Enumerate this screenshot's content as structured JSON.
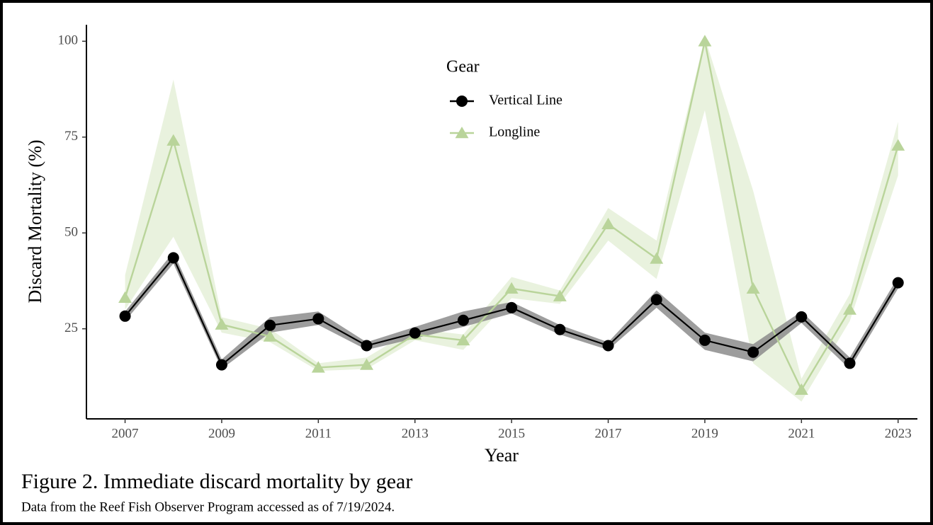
{
  "chart_data": {
    "type": "line",
    "x_label": "Year",
    "y_label": "Discard Mortality (%)",
    "caption": "Figure 2.  Immediate discard mortality by gear",
    "note": "Data from the Reef Fish Observer Program accessed as of 7/19/2024.",
    "legend_title": "Gear",
    "x": [
      2007,
      2008,
      2009,
      2010,
      2011,
      2012,
      2013,
      2014,
      2015,
      2016,
      2017,
      2018,
      2019,
      2020,
      2021,
      2022,
      2023
    ],
    "series": [
      {
        "name": "Vertical Line",
        "color": "#000000",
        "band_color": "#8c8c8c",
        "marker": "circle",
        "values": [
          28.3,
          43.5,
          15.6,
          25.9,
          27.6,
          20.6,
          23.9,
          27.2,
          30.5,
          24.8,
          20.6,
          32.6,
          22.0,
          18.9,
          28.1,
          16.0,
          37.0
        ],
        "lower": [
          27,
          42,
          14.5,
          24,
          26,
          19.5,
          22.5,
          25.5,
          29,
          23.5,
          19.5,
          30.5,
          19.5,
          16.5,
          26.5,
          14.5,
          35.5
        ],
        "upper": [
          29.5,
          45,
          17,
          28,
          29.5,
          21.5,
          25.5,
          29.5,
          32,
          26,
          21.5,
          35,
          24,
          21,
          29.5,
          17.5,
          38.5
        ]
      },
      {
        "name": "Longline",
        "color": "#b9d49a",
        "band_color": "#e4efd6",
        "marker": "triangle",
        "values": [
          33.1,
          74.1,
          26.1,
          23.0,
          14.9,
          15.6,
          23.5,
          22.0,
          35.5,
          33.5,
          52.3,
          43.3,
          100,
          35.5,
          9.1,
          30.0,
          72.8
        ],
        "lower": [
          30,
          49,
          24,
          21.5,
          14,
          14.5,
          22,
          19.5,
          33,
          31.5,
          48,
          38,
          82,
          16,
          6,
          27,
          65
        ],
        "upper": [
          39,
          90,
          28,
          25,
          16,
          17.5,
          25,
          23.5,
          38.5,
          35,
          56.5,
          48,
          101,
          61,
          12,
          34,
          79
        ]
      }
    ],
    "xlim": [
      2006.2,
      2023.4
    ],
    "xticks": [
      2007,
      2009,
      2011,
      2013,
      2015,
      2017,
      2019,
      2021,
      2023
    ],
    "ylim": [
      1.5,
      104.3
    ],
    "yticks": [
      25,
      50,
      75,
      100
    ],
    "grid": false
  }
}
